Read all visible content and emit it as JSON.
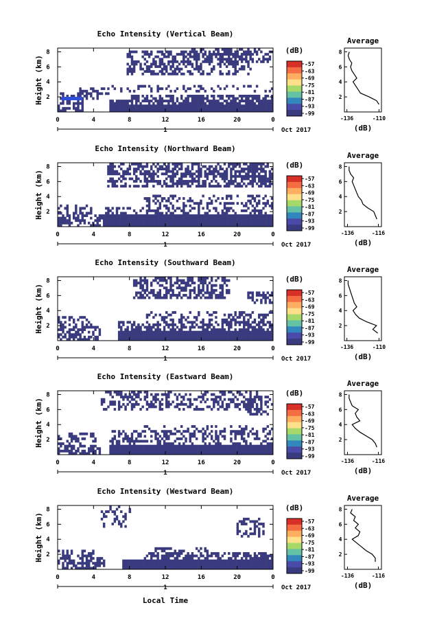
{
  "figure": {
    "xlabel": "Local Time",
    "day_label": "1",
    "date_label": "Oct 2017",
    "cbar_unit": "(dB)",
    "avg_title": "Average",
    "avg_xlabel": "(dB)"
  },
  "chart_data": [
    {
      "type": "heatmap",
      "title": "Echo Intensity (Vertical Beam)",
      "ylabel": "Height (km)",
      "x_ticks": [
        "0",
        "4",
        "8",
        "12",
        "16",
        "20",
        "0"
      ],
      "y_ticks": [
        "2",
        "4",
        "6",
        "8"
      ],
      "colorbar_ticks": [
        "-57",
        "-63",
        "-69",
        "-75",
        "-81",
        "-87",
        "-93",
        "-99"
      ],
      "avg_x_ticks": [
        "-136",
        "-110"
      ],
      "avg_y_ticks": [
        "2",
        "4",
        "6",
        "8"
      ],
      "avg_profile": {
        "height_km": [
          1.0,
          1.5,
          2.0,
          2.5,
          3.0,
          3.5,
          4.0,
          4.5,
          5.0,
          5.5,
          6.0,
          6.5,
          7.0,
          7.5,
          8.0
        ],
        "db": [
          -110,
          -112,
          -118,
          -125,
          -127,
          -129,
          -131,
          -128,
          -130,
          -132,
          -133,
          -132,
          -134,
          -135,
          -134
        ]
      }
    },
    {
      "type": "heatmap",
      "title": "Echo Intensity (Northward Beam)",
      "ylabel": "Height (km)",
      "x_ticks": [
        "0",
        "4",
        "8",
        "12",
        "16",
        "20",
        "0"
      ],
      "y_ticks": [
        "2",
        "4",
        "6",
        "8"
      ],
      "colorbar_ticks": [
        "-57",
        "-63",
        "-69",
        "-75",
        "-81",
        "-87",
        "-93",
        "-99"
      ],
      "avg_x_ticks": [
        "-136",
        "-116"
      ],
      "avg_y_ticks": [
        "2",
        "4",
        "6",
        "8"
      ],
      "avg_profile": {
        "height_km": [
          1.0,
          1.5,
          2.0,
          2.5,
          3.0,
          3.5,
          4.0,
          4.5,
          5.0,
          5.5,
          6.0,
          6.5,
          7.0,
          7.5,
          8.0
        ],
        "db": [
          -117,
          -118,
          -119,
          -123,
          -126,
          -127,
          -129,
          -130,
          -131,
          -132,
          -133,
          -132,
          -134,
          -135,
          -135
        ]
      }
    },
    {
      "type": "heatmap",
      "title": "Echo Intensity (Southward Beam)",
      "ylabel": "Height (km)",
      "x_ticks": [
        "0",
        "4",
        "8",
        "12",
        "16",
        "20",
        "0"
      ],
      "y_ticks": [
        "2",
        "4",
        "6",
        "8"
      ],
      "colorbar_ticks": [
        "-57",
        "-63",
        "-69",
        "-75",
        "-81",
        "-87",
        "-93",
        "-99"
      ],
      "avg_x_ticks": [
        "-136",
        "-110"
      ],
      "avg_y_ticks": [
        "2",
        "4",
        "6",
        "8"
      ],
      "avg_profile": {
        "height_km": [
          1.0,
          1.5,
          2.0,
          2.5,
          3.0,
          3.5,
          4.0,
          4.5,
          5.0,
          5.5,
          6.0,
          6.5,
          7.0,
          7.5,
          8.0
        ],
        "db": [
          -111,
          -115,
          -112,
          -120,
          -126,
          -129,
          -131,
          -128,
          -130,
          -131,
          -132,
          -133,
          -134,
          -135,
          -135
        ]
      }
    },
    {
      "type": "heatmap",
      "title": "Echo Intensity (Eastward Beam)",
      "ylabel": "Height (km)",
      "x_ticks": [
        "0",
        "4",
        "8",
        "12",
        "16",
        "20",
        "0"
      ],
      "y_ticks": [
        "2",
        "4",
        "6",
        "8"
      ],
      "colorbar_ticks": [
        "-57",
        "-63",
        "-69",
        "-75",
        "-81",
        "-87",
        "-93",
        "-99"
      ],
      "avg_x_ticks": [
        "-136",
        "-116"
      ],
      "avg_y_ticks": [
        "2",
        "4",
        "6",
        "8"
      ],
      "avg_profile": {
        "height_km": [
          1.0,
          1.5,
          2.0,
          2.5,
          3.0,
          3.5,
          4.0,
          4.5,
          5.0,
          5.5,
          6.0,
          6.5,
          7.0,
          7.5,
          8.0
        ],
        "db": [
          -117,
          -118,
          -120,
          -124,
          -128,
          -131,
          -133,
          -128,
          -130,
          -131,
          -129,
          -133,
          -134,
          -135,
          -135
        ]
      }
    },
    {
      "type": "heatmap",
      "title": "Echo Intensity (Westward Beam)",
      "ylabel": "Height (km)",
      "x_ticks": [
        "0",
        "4",
        "8",
        "12",
        "16",
        "20",
        "0"
      ],
      "y_ticks": [
        "2",
        "4",
        "6",
        "8"
      ],
      "colorbar_ticks": [
        "-57",
        "-63",
        "-69",
        "-75",
        "-81",
        "-87",
        "-93",
        "-99"
      ],
      "avg_x_ticks": [
        "-136",
        "-116"
      ],
      "avg_y_ticks": [
        "2",
        "4",
        "6",
        "8"
      ],
      "avg_profile": {
        "height_km": [
          1.0,
          1.5,
          2.0,
          2.5,
          3.0,
          3.5,
          4.0,
          4.5,
          5.0,
          5.5,
          6.0,
          6.5,
          7.0,
          7.5,
          8.0
        ],
        "db": [
          -118,
          -118,
          -120,
          -124,
          -127,
          -130,
          -133,
          -129,
          -128,
          -131,
          -129,
          -132,
          -131,
          -134,
          -133
        ]
      }
    }
  ],
  "colors": {
    "echo": "#3a3a7e",
    "axis": "#000000",
    "hilite": "#2f4fd8"
  },
  "colorbar_colors": [
    "#d73027",
    "#f46d43",
    "#fdae61",
    "#fee08b",
    "#a6d96a",
    "#66c2a5",
    "#3288bd",
    "#4a4aa8",
    "#3a3a7e"
  ]
}
